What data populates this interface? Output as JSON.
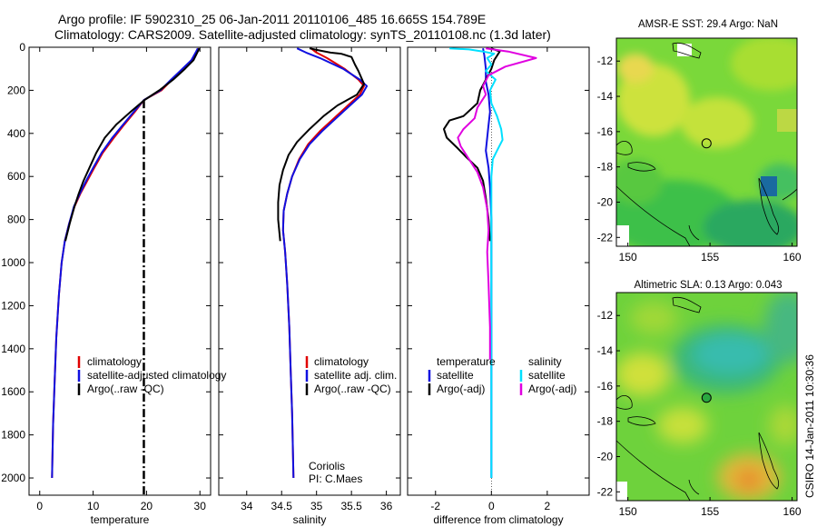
{
  "header": {
    "line1": "Argo profile: IF 5902310_25 06-Jan-2011 20110106_485 16.665S 154.789E",
    "line2": "Climatology: CARS2009. Satellite-adjusted climatology: synTS_20110108.nc (1.3d later)"
  },
  "stamp": "CSIRO 14-Jan-2011 10:30:36",
  "colors": {
    "climatology": "#e00000",
    "satellite": "#1010e0",
    "argo": "#000000",
    "satellite_salinity": "#00e0ff",
    "argo_salinity": "#e000e0"
  },
  "chart_data": [
    {
      "type": "line",
      "name": "temperature",
      "xlabel": "temperature",
      "ylabel": "",
      "xlim": [
        -2,
        32
      ],
      "ylim": [
        2080,
        0
      ],
      "xticks": [
        "0",
        "10",
        "20",
        "30"
      ],
      "xtick_values": [
        0,
        10,
        20,
        30
      ],
      "yticks": [
        "0",
        "200",
        "400",
        "600",
        "800",
        "1000",
        "1200",
        "1400",
        "1600",
        "1800",
        "2000"
      ],
      "ytick_values": [
        0,
        200,
        400,
        600,
        800,
        1000,
        1200,
        1400,
        1600,
        1800,
        2000
      ],
      "legend": [
        "climatology",
        "satellite-adjusted climatology",
        "Argo(..raw -QC)"
      ],
      "reference_line": {
        "x": 19.5,
        "style": "dash-dot"
      },
      "series": [
        {
          "name": "climatology",
          "color_key": "climatology",
          "points": [
            [
              29.8,
              5
            ],
            [
              29.5,
              20
            ],
            [
              28.6,
              60
            ],
            [
              26.5,
              110
            ],
            [
              24.8,
              150
            ],
            [
              22.8,
              200
            ],
            [
              19.5,
              245
            ],
            [
              17.8,
              300
            ],
            [
              15.8,
              360
            ],
            [
              13.9,
              420
            ],
            [
              11.8,
              490
            ],
            [
              10.2,
              560
            ],
            [
              8.9,
              620
            ],
            [
              7.6,
              680
            ],
            [
              6.5,
              740
            ],
            [
              5.5,
              820
            ],
            [
              4.7,
              900
            ],
            [
              4.1,
              1000
            ],
            [
              3.6,
              1150
            ],
            [
              3.1,
              1350
            ],
            [
              2.8,
              1550
            ],
            [
              2.5,
              1750
            ],
            [
              2.3,
              2000
            ]
          ]
        },
        {
          "name": "satellite-adjusted climatology",
          "color_key": "satellite",
          "points": [
            [
              29.6,
              5
            ],
            [
              29.3,
              20
            ],
            [
              28.4,
              60
            ],
            [
              26.3,
              110
            ],
            [
              24.6,
              150
            ],
            [
              22.6,
              200
            ],
            [
              19.5,
              245
            ],
            [
              17.6,
              300
            ],
            [
              15.6,
              360
            ],
            [
              13.6,
              420
            ],
            [
              11.6,
              490
            ],
            [
              10.0,
              560
            ],
            [
              8.7,
              620
            ],
            [
              7.5,
              680
            ],
            [
              6.4,
              740
            ],
            [
              5.5,
              820
            ],
            [
              4.7,
              900
            ],
            [
              4.1,
              1000
            ],
            [
              3.6,
              1150
            ],
            [
              3.1,
              1350
            ],
            [
              2.8,
              1550
            ],
            [
              2.5,
              1750
            ],
            [
              2.3,
              2000
            ]
          ]
        },
        {
          "name": "Argo(..raw -QC)",
          "color_key": "argo",
          "points": [
            [
              29.9,
              5
            ],
            [
              29.6,
              20
            ],
            [
              28.8,
              60
            ],
            [
              27.2,
              100
            ],
            [
              25.0,
              150
            ],
            [
              22.4,
              200
            ],
            [
              19.6,
              245
            ],
            [
              17.0,
              300
            ],
            [
              14.3,
              360
            ],
            [
              12.2,
              420
            ],
            [
              10.6,
              490
            ],
            [
              9.3,
              560
            ],
            [
              8.2,
              620
            ],
            [
              7.3,
              680
            ],
            [
              6.5,
              740
            ],
            [
              5.6,
              820
            ],
            [
              4.8,
              900
            ]
          ]
        }
      ]
    },
    {
      "type": "line",
      "name": "salinity",
      "xlabel": "salinity",
      "ylabel": "",
      "xlim": [
        33.6,
        36.2
      ],
      "ylim": [
        2080,
        0
      ],
      "xticks": [
        "34",
        "34.5",
        "35",
        "35.5",
        "36"
      ],
      "xtick_values": [
        34,
        34.5,
        35,
        35.5,
        36
      ],
      "legend": [
        "climatology",
        "satellite adj. clim.",
        "Argo(..raw -QC)"
      ],
      "annotation": [
        "Coriolis",
        "PI: C.Maes"
      ],
      "series": [
        {
          "name": "climatology",
          "color_key": "climatology",
          "points": [
            [
              34.92,
              5
            ],
            [
              35.0,
              25
            ],
            [
              35.15,
              50
            ],
            [
              35.4,
              100
            ],
            [
              35.6,
              150
            ],
            [
              35.68,
              180
            ],
            [
              35.62,
              220
            ],
            [
              35.45,
              270
            ],
            [
              35.25,
              330
            ],
            [
              35.05,
              390
            ],
            [
              34.88,
              450
            ],
            [
              34.75,
              520
            ],
            [
              34.65,
              600
            ],
            [
              34.58,
              680
            ],
            [
              34.53,
              760
            ],
            [
              34.52,
              850
            ],
            [
              34.55,
              950
            ],
            [
              34.58,
              1100
            ],
            [
              34.61,
              1300
            ],
            [
              34.63,
              1500
            ],
            [
              34.65,
              1700
            ],
            [
              34.67,
              2000
            ]
          ]
        },
        {
          "name": "satellite adj. clim.",
          "color_key": "satellite",
          "points": [
            [
              34.72,
              5
            ],
            [
              34.85,
              25
            ],
            [
              35.05,
              50
            ],
            [
              35.38,
              100
            ],
            [
              35.62,
              150
            ],
            [
              35.72,
              180
            ],
            [
              35.65,
              220
            ],
            [
              35.48,
              270
            ],
            [
              35.28,
              330
            ],
            [
              35.08,
              390
            ],
            [
              34.9,
              450
            ],
            [
              34.76,
              520
            ],
            [
              34.65,
              600
            ],
            [
              34.58,
              680
            ],
            [
              34.53,
              760
            ],
            [
              34.52,
              850
            ],
            [
              34.55,
              950
            ],
            [
              34.58,
              1100
            ],
            [
              34.61,
              1300
            ],
            [
              34.63,
              1500
            ],
            [
              34.65,
              1700
            ],
            [
              34.67,
              2000
            ]
          ]
        },
        {
          "name": "Argo(..raw -QC)",
          "color_key": "argo",
          "points": [
            [
              34.9,
              5
            ],
            [
              35.05,
              15
            ],
            [
              35.2,
              25
            ],
            [
              35.35,
              30
            ],
            [
              35.5,
              45
            ],
            [
              35.55,
              80
            ],
            [
              35.6,
              110
            ],
            [
              35.68,
              170
            ],
            [
              35.58,
              220
            ],
            [
              35.3,
              270
            ],
            [
              35.1,
              320
            ],
            [
              34.9,
              380
            ],
            [
              34.72,
              440
            ],
            [
              34.6,
              500
            ],
            [
              34.52,
              570
            ],
            [
              34.47,
              640
            ],
            [
              34.45,
              720
            ],
            [
              34.45,
              800
            ],
            [
              34.48,
              900
            ]
          ]
        }
      ]
    },
    {
      "type": "line",
      "name": "difference",
      "xlabel": "difference from climatology",
      "ylabel": "",
      "xlim": [
        -3,
        3.5
      ],
      "ylim": [
        2080,
        0
      ],
      "xticks": [
        "-2",
        "0",
        "2"
      ],
      "xtick_values": [
        -2,
        0,
        2
      ],
      "legend_temperature": {
        "heading": "temperature",
        "items": [
          "satellite",
          "Argo(-adj)"
        ]
      },
      "legend_salinity": {
        "heading": "salinity",
        "items": [
          "satellite",
          "Argo(-adj)"
        ]
      },
      "series": [
        {
          "name": "temperature satellite",
          "color_key": "satellite",
          "points": [
            [
              -0.3,
              5
            ],
            [
              -0.25,
              40
            ],
            [
              -0.2,
              100
            ],
            [
              -0.2,
              160
            ],
            [
              -0.1,
              220
            ],
            [
              -0.05,
              300
            ],
            [
              -0.1,
              360
            ],
            [
              -0.15,
              420
            ],
            [
              -0.2,
              480
            ],
            [
              -0.1,
              560
            ],
            [
              -0.05,
              650
            ],
            [
              0,
              800
            ],
            [
              0,
              2000
            ]
          ]
        },
        {
          "name": "temperature Argo(-adj)",
          "color_key": "argo",
          "points": [
            [
              0,
              5
            ],
            [
              0.3,
              20
            ],
            [
              0.1,
              60
            ],
            [
              0,
              100
            ],
            [
              -0.2,
              150
            ],
            [
              -0.4,
              200
            ],
            [
              -0.5,
              260
            ],
            [
              -1.0,
              320
            ],
            [
              -1.5,
              340
            ],
            [
              -1.7,
              380
            ],
            [
              -1.6,
              420
            ],
            [
              -1.2,
              470
            ],
            [
              -0.9,
              510
            ],
            [
              -0.5,
              560
            ],
            [
              -0.3,
              620
            ],
            [
              -0.2,
              700
            ],
            [
              -0.1,
              800
            ],
            [
              -0.05,
              900
            ]
          ]
        },
        {
          "name": "salinity satellite",
          "color_key": "satellite_salinity",
          "points": [
            [
              -1.5,
              5
            ],
            [
              -0.8,
              10
            ],
            [
              -0.3,
              20
            ],
            [
              0.1,
              30
            ],
            [
              -0.15,
              50
            ],
            [
              0,
              80
            ],
            [
              -0.2,
              110
            ],
            [
              0.15,
              150
            ],
            [
              -0.05,
              200
            ],
            [
              0,
              260
            ],
            [
              0.2,
              320
            ],
            [
              0.35,
              380
            ],
            [
              0.4,
              430
            ],
            [
              0.2,
              480
            ],
            [
              0.05,
              520
            ],
            [
              0,
              600
            ],
            [
              0,
              2000
            ]
          ]
        },
        {
          "name": "salinity Argo(-adj)",
          "color_key": "argo_salinity",
          "points": [
            [
              -0.2,
              5
            ],
            [
              0.6,
              20
            ],
            [
              1.6,
              50
            ],
            [
              0.5,
              90
            ],
            [
              -0.1,
              130
            ],
            [
              -0.3,
              180
            ],
            [
              -0.2,
              220
            ],
            [
              -0.5,
              280
            ],
            [
              -0.6,
              330
            ],
            [
              -1.0,
              380
            ],
            [
              -1.2,
              420
            ],
            [
              -1.1,
              460
            ],
            [
              -0.8,
              520
            ],
            [
              -0.5,
              580
            ],
            [
              -0.3,
              650
            ],
            [
              -0.15,
              750
            ],
            [
              -0.1,
              850
            ],
            [
              -0.15,
              950
            ],
            [
              -0.1,
              1100
            ],
            [
              -0.05,
              1300
            ],
            [
              -0.05,
              1450
            ]
          ]
        }
      ]
    },
    {
      "type": "heatmap",
      "name": "sst_map",
      "title": "AMSR-E SST: 29.4  Argo: NaN",
      "xlim": [
        149.3,
        160.3
      ],
      "ylim": [
        -22.5,
        -10.7
      ],
      "xticks": [
        "150",
        "155",
        "160"
      ],
      "xtick_values": [
        150,
        155,
        160
      ],
      "yticks": [
        "-12",
        "-14",
        "-16",
        "-18",
        "-20",
        "-22"
      ],
      "ytick_values": [
        -12,
        -14,
        -16,
        -18,
        -20,
        -22
      ],
      "float_position": {
        "lon": 154.789,
        "lat": -16.665,
        "marker": "open circle"
      }
    },
    {
      "type": "heatmap",
      "name": "sla_map",
      "title": "Altimetric SLA: 0.13  Argo: 0.043",
      "xlim": [
        149.3,
        160.3
      ],
      "ylim": [
        -22.5,
        -10.7
      ],
      "xticks": [
        "150",
        "155",
        "160"
      ],
      "xtick_values": [
        150,
        155,
        160
      ],
      "yticks": [
        "-12",
        "-14",
        "-16",
        "-18",
        "-20",
        "-22"
      ],
      "ytick_values": [
        -12,
        -14,
        -16,
        -18,
        -20,
        -22
      ],
      "float_position": {
        "lon": 154.789,
        "lat": -16.665,
        "marker": "filled circle"
      }
    }
  ]
}
